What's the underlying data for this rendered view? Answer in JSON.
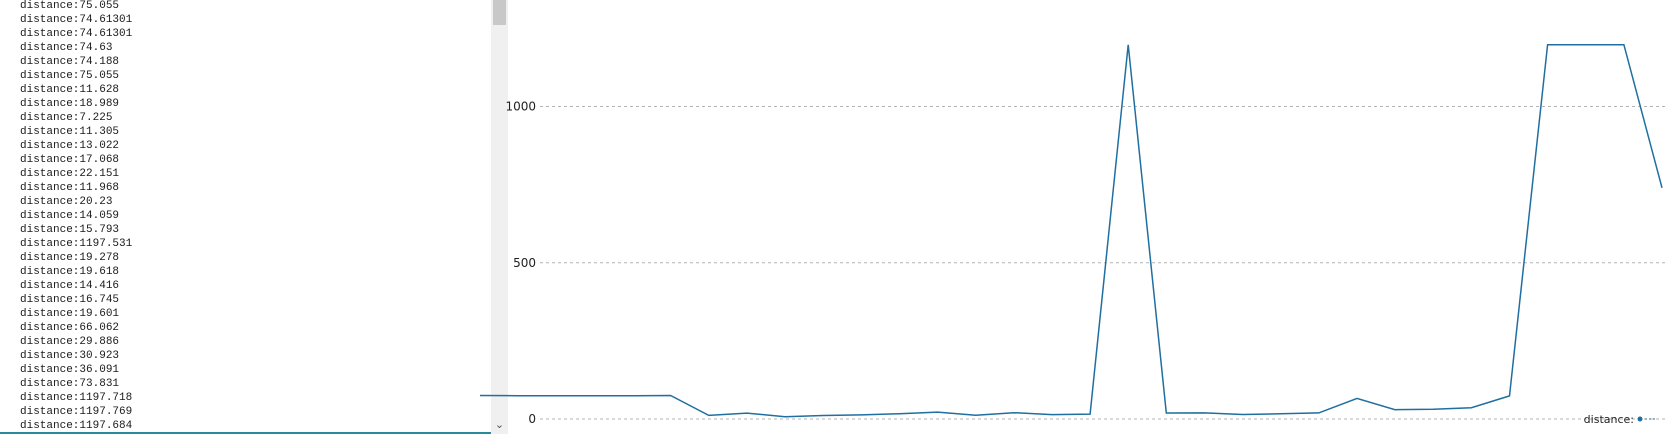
{
  "serial_monitor": {
    "lines": [
      "distance:75.055",
      "distance:74.61301",
      "distance:74.61301",
      "distance:74.63",
      "distance:74.188",
      "distance:75.055",
      "distance:11.628",
      "distance:18.989",
      "distance:7.225",
      "distance:11.305",
      "distance:13.022",
      "distance:17.068",
      "distance:22.151",
      "distance:11.968",
      "distance:20.23",
      "distance:14.059",
      "distance:15.793",
      "distance:1197.531",
      "distance:19.278",
      "distance:19.618",
      "distance:14.416",
      "distance:16.745",
      "distance:19.601",
      "distance:66.062",
      "distance:29.886",
      "distance:30.923",
      "distance:36.091",
      "distance:73.831",
      "distance:1197.718",
      "distance:1197.769",
      "distance:1197.684"
    ],
    "scroll_down_glyph": "⌄"
  },
  "colors": {
    "series": "#1f6fa0",
    "grid": "#b4b4b4",
    "serial_underline": "#2a8a9a"
  },
  "chart_data": {
    "type": "line",
    "title": "",
    "xlabel": "",
    "ylabel": "",
    "y_ticks": [
      0,
      500,
      1000
    ],
    "ylim": [
      0,
      1200
    ],
    "grid": true,
    "legend_position": "bottom-right",
    "series": [
      {
        "name": "distance:",
        "values": [
          75.055,
          74.61301,
          74.61301,
          74.63,
          74.188,
          75.055,
          11.628,
          18.989,
          7.225,
          11.305,
          13.022,
          17.068,
          22.151,
          11.968,
          20.23,
          14.059,
          15.793,
          1197.531,
          19.278,
          19.618,
          14.416,
          16.745,
          19.601,
          66.062,
          29.886,
          30.923,
          36.091,
          73.831,
          1197.718,
          1197.769,
          1197.684,
          740
        ]
      }
    ]
  }
}
